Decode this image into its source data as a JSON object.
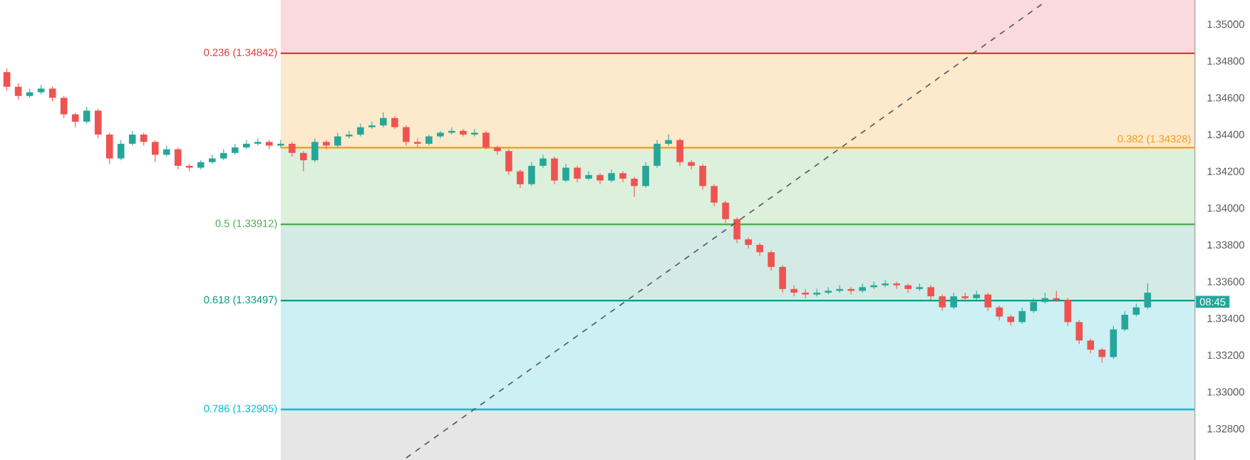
{
  "chart_data": {
    "type": "candlestick",
    "categories": [
      null,
      null,
      null,
      null,
      null,
      null,
      null,
      null,
      null,
      null,
      null,
      null,
      null,
      null,
      null,
      null,
      null,
      null,
      null,
      null,
      null,
      null,
      null,
      null,
      null,
      null,
      null,
      null,
      null,
      null,
      null,
      null,
      null,
      null,
      null,
      null,
      null,
      null,
      null,
      null,
      null,
      null,
      null,
      null,
      null,
      null,
      null,
      null,
      null,
      null,
      null,
      null,
      null,
      null,
      null,
      null,
      null,
      null,
      null,
      null,
      null,
      null,
      null,
      null,
      null,
      null,
      null,
      null,
      null,
      null,
      null,
      null,
      null,
      null,
      null,
      null,
      null,
      null,
      null,
      null,
      null,
      null,
      null,
      null,
      null,
      null,
      null,
      null,
      null,
      null,
      null,
      null,
      null,
      null,
      null,
      null,
      null,
      null,
      null,
      null,
      null
    ],
    "ohlc": [
      [
        1.3474,
        1.3476,
        1.3464,
        1.3466
      ],
      [
        1.3466,
        1.3468,
        1.3459,
        1.3461
      ],
      [
        1.3461,
        1.3465,
        1.346,
        1.3463
      ],
      [
        1.3463,
        1.3467,
        1.3462,
        1.3465
      ],
      [
        1.3465,
        1.3466,
        1.3458,
        1.346
      ],
      [
        1.346,
        1.3461,
        1.3449,
        1.3451
      ],
      [
        1.3451,
        1.3452,
        1.3444,
        1.3447
      ],
      [
        1.3447,
        1.3455,
        1.3446,
        1.3453
      ],
      [
        1.3453,
        1.3454,
        1.3438,
        1.344
      ],
      [
        1.344,
        1.3441,
        1.3424,
        1.3427
      ],
      [
        1.3427,
        1.3437,
        1.3426,
        1.3435
      ],
      [
        1.3435,
        1.3442,
        1.3434,
        1.344
      ],
      [
        1.344,
        1.3441,
        1.3434,
        1.3436
      ],
      [
        1.3436,
        1.3437,
        1.3425,
        1.3429
      ],
      [
        1.3429,
        1.3434,
        1.3428,
        1.3432
      ],
      [
        1.3432,
        1.3433,
        1.3421,
        1.3423
      ],
      [
        1.3423,
        1.3424,
        1.342,
        1.3422
      ],
      [
        1.3422,
        1.3426,
        1.3421,
        1.3425
      ],
      [
        1.3425,
        1.3429,
        1.3424,
        1.3427
      ],
      [
        1.3427,
        1.3432,
        1.3426,
        1.343
      ],
      [
        1.343,
        1.3435,
        1.3429,
        1.3433
      ],
      [
        1.3433,
        1.3437,
        1.3432,
        1.3435
      ],
      [
        1.3435,
        1.3438,
        1.3434,
        1.3436
      ],
      [
        1.3436,
        1.3437,
        1.3432,
        1.3434
      ],
      [
        1.3434,
        1.3437,
        1.3433,
        1.3435
      ],
      [
        1.3435,
        1.3436,
        1.3428,
        1.343
      ],
      [
        1.343,
        1.3431,
        1.342,
        1.3426
      ],
      [
        1.3426,
        1.3438,
        1.3425,
        1.3436
      ],
      [
        1.3436,
        1.3437,
        1.3432,
        1.3434
      ],
      [
        1.3434,
        1.3441,
        1.3433,
        1.3439
      ],
      [
        1.3439,
        1.3442,
        1.3438,
        1.344
      ],
      [
        1.344,
        1.3446,
        1.3439,
        1.3444
      ],
      [
        1.3444,
        1.3447,
        1.3443,
        1.3445
      ],
      [
        1.3445,
        1.3452,
        1.3444,
        1.3449
      ],
      [
        1.3449,
        1.345,
        1.3443,
        1.3444
      ],
      [
        1.3444,
        1.3445,
        1.3434,
        1.3436
      ],
      [
        1.3436,
        1.3438,
        1.3433,
        1.3435
      ],
      [
        1.3435,
        1.344,
        1.3434,
        1.3439
      ],
      [
        1.3439,
        1.3442,
        1.3438,
        1.3441
      ],
      [
        1.3441,
        1.3444,
        1.344,
        1.3442
      ],
      [
        1.3442,
        1.3443,
        1.3439,
        1.344
      ],
      [
        1.344,
        1.3443,
        1.3439,
        1.3441
      ],
      [
        1.3441,
        1.3442,
        1.3432,
        1.3433
      ],
      [
        1.3433,
        1.3434,
        1.3429,
        1.3431
      ],
      [
        1.3431,
        1.3432,
        1.3418,
        1.342
      ],
      [
        1.342,
        1.3421,
        1.3411,
        1.3413
      ],
      [
        1.3413,
        1.3425,
        1.3412,
        1.3423
      ],
      [
        1.3423,
        1.3429,
        1.3422,
        1.3427
      ],
      [
        1.3427,
        1.3428,
        1.3413,
        1.3415
      ],
      [
        1.3415,
        1.3424,
        1.3414,
        1.3422
      ],
      [
        1.3422,
        1.3423,
        1.3414,
        1.3416
      ],
      [
        1.3416,
        1.342,
        1.3415,
        1.3418
      ],
      [
        1.3418,
        1.3419,
        1.3413,
        1.3415
      ],
      [
        1.3415,
        1.3421,
        1.3414,
        1.3419
      ],
      [
        1.3419,
        1.342,
        1.3414,
        1.3416
      ],
      [
        1.3416,
        1.3417,
        1.3406,
        1.3412
      ],
      [
        1.3412,
        1.3425,
        1.3411,
        1.3423
      ],
      [
        1.3423,
        1.3437,
        1.3422,
        1.3435
      ],
      [
        1.3435,
        1.344,
        1.3434,
        1.3437
      ],
      [
        1.3437,
        1.3438,
        1.3423,
        1.3425
      ],
      [
        1.3425,
        1.3426,
        1.3421,
        1.3423
      ],
      [
        1.3423,
        1.3424,
        1.341,
        1.3412
      ],
      [
        1.3412,
        1.3413,
        1.3401,
        1.3403
      ],
      [
        1.3403,
        1.3404,
        1.3392,
        1.3394
      ],
      [
        1.3394,
        1.3395,
        1.3381,
        1.3383
      ],
      [
        1.3383,
        1.3384,
        1.3378,
        1.338
      ],
      [
        1.338,
        1.3381,
        1.3374,
        1.3376
      ],
      [
        1.3376,
        1.3377,
        1.3366,
        1.3368
      ],
      [
        1.3368,
        1.3369,
        1.3354,
        1.3356
      ],
      [
        1.3356,
        1.3358,
        1.3352,
        1.3354
      ],
      [
        1.3354,
        1.3356,
        1.3351,
        1.3353
      ],
      [
        1.3353,
        1.3356,
        1.3352,
        1.3354
      ],
      [
        1.3354,
        1.3357,
        1.3353,
        1.3355
      ],
      [
        1.3355,
        1.3358,
        1.3354,
        1.3356
      ],
      [
        1.3356,
        1.3357,
        1.3353,
        1.3355
      ],
      [
        1.3355,
        1.3359,
        1.3354,
        1.3357
      ],
      [
        1.3357,
        1.336,
        1.3356,
        1.3358
      ],
      [
        1.3358,
        1.3361,
        1.3357,
        1.3359
      ],
      [
        1.3359,
        1.336,
        1.3356,
        1.3358
      ],
      [
        1.3358,
        1.3359,
        1.3354,
        1.3356
      ],
      [
        1.3356,
        1.3359,
        1.3355,
        1.3357
      ],
      [
        1.3357,
        1.3358,
        1.335,
        1.3352
      ],
      [
        1.3352,
        1.3353,
        1.3344,
        1.3346
      ],
      [
        1.3346,
        1.3354,
        1.3345,
        1.3352
      ],
      [
        1.3352,
        1.3354,
        1.3349,
        1.3351
      ],
      [
        1.3351,
        1.3355,
        1.335,
        1.3353
      ],
      [
        1.3353,
        1.3354,
        1.3344,
        1.3346
      ],
      [
        1.3346,
        1.3347,
        1.3339,
        1.3341
      ],
      [
        1.3341,
        1.3342,
        1.3336,
        1.3338
      ],
      [
        1.3338,
        1.3346,
        1.3337,
        1.3344
      ],
      [
        1.3344,
        1.3351,
        1.3343,
        1.3349
      ],
      [
        1.3349,
        1.3354,
        1.3348,
        1.3351
      ],
      [
        1.3351,
        1.3355,
        1.3349,
        1.335
      ],
      [
        1.335,
        1.3351,
        1.3336,
        1.3338
      ],
      [
        1.3338,
        1.3339,
        1.3326,
        1.3328
      ],
      [
        1.3328,
        1.3329,
        1.3321,
        1.3323
      ],
      [
        1.3323,
        1.3324,
        1.3316,
        1.3319
      ],
      [
        1.3319,
        1.3336,
        1.3318,
        1.3334
      ],
      [
        1.3334,
        1.3344,
        1.3333,
        1.3342
      ],
      [
        1.3342,
        1.3348,
        1.3341,
        1.3346
      ],
      [
        1.3346,
        1.3359,
        1.3345,
        1.3354
      ]
    ],
    "series": [
      {
        "type": "line",
        "values": [
          null,
          null,
          null,
          null,
          null,
          null,
          null,
          null,
          null,
          null,
          null,
          null,
          null,
          null,
          null,
          null,
          null,
          null,
          null,
          null,
          null,
          null,
          null,
          null,
          null,
          null,
          null,
          null,
          null,
          null,
          null,
          null,
          null,
          null,
          null,
          1.32641,
          null,
          null,
          null,
          null,
          null,
          null,
          null,
          null,
          null,
          null,
          null,
          null,
          null,
          null,
          null,
          null,
          null,
          null,
          null,
          null,
          null,
          null,
          null,
          null,
          null,
          null,
          null,
          null,
          null,
          null,
          null,
          null,
          null,
          null,
          null,
          null,
          null,
          null,
          null,
          null,
          null,
          null,
          null,
          null,
          null,
          null,
          null,
          null,
          null,
          null,
          null,
          null,
          null,
          null,
          null,
          1.35121,
          null,
          null,
          null,
          null,
          null,
          null,
          null,
          null,
          null
        ],
        "color": "#555555",
        "line_style": "dashed"
      }
    ],
    "ylim": [
      1.3263,
      1.35132
    ],
    "yticks": [
      {
        "value": 1.328,
        "label": "1.32800"
      },
      {
        "value": 1.33,
        "label": "1.33000"
      },
      {
        "value": 1.332,
        "label": "1.33200"
      },
      {
        "value": 1.334,
        "label": "1.33400"
      },
      {
        "value": 1.336,
        "label": "1.33600"
      },
      {
        "value": 1.338,
        "label": "1.33800"
      },
      {
        "value": 1.34,
        "label": "1.34000"
      },
      {
        "value": 1.342,
        "label": "1.34200"
      },
      {
        "value": 1.344,
        "label": "1.34400"
      },
      {
        "value": 1.346,
        "label": "1.34600"
      },
      {
        "value": 1.348,
        "label": "1.34800"
      },
      {
        "value": 1.35,
        "label": "1.35000"
      }
    ],
    "tick_labels": "y",
    "ref_lines": [
      {
        "axis": "y",
        "value": 1.34842,
        "label": "0.236 (1.34842)",
        "color": "#e53935"
      },
      {
        "axis": "y",
        "value": 1.34328,
        "label": "0.382 (1.34328)",
        "color": "#f59c1a"
      },
      {
        "axis": "y",
        "value": 1.33912,
        "label": "0.5 (1.33912)",
        "color": "#4caf50"
      },
      {
        "axis": "y",
        "value": 1.33497,
        "label": "0.618 (1.33497)",
        "color": "#089981"
      },
      {
        "axis": "y",
        "value": 1.32905,
        "label": "0.786 (1.32905)",
        "color": "#00bcd4"
      }
    ],
    "bands": [
      {
        "axis": "y",
        "from": 1.34842,
        "to": 1.35132,
        "color": "#fadadd"
      },
      {
        "axis": "y",
        "from": 1.34328,
        "to": 1.34842,
        "color": "#fde9cc"
      },
      {
        "axis": "y",
        "from": 1.33912,
        "to": 1.34328,
        "color": "#ddf0dc"
      },
      {
        "axis": "y",
        "from": 1.33497,
        "to": 1.33912,
        "color": "#d3ebe4"
      },
      {
        "axis": "y",
        "from": 1.32905,
        "to": 1.33497,
        "color": "#cdf0f4"
      },
      {
        "axis": "y",
        "from": 1.3263,
        "to": 1.32905,
        "color": "#e6e6e6"
      }
    ],
    "annotations": [
      "08:45"
    ]
  }
}
